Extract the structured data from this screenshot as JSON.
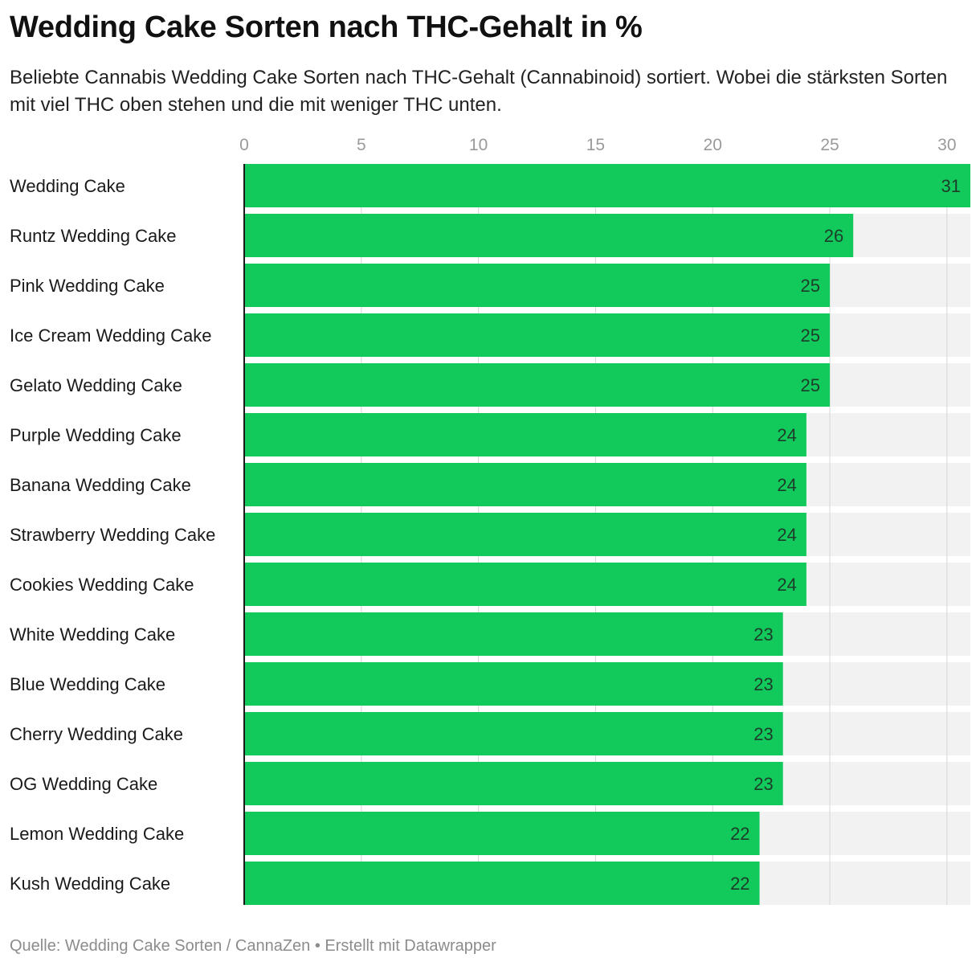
{
  "title": "Wedding Cake Sorten nach THC-Gehalt in %",
  "subtitle": "Beliebte Cannabis Wedding Cake Sorten nach THC-Gehalt (Cannabinoid) sortiert. Wobei die stärksten Sorten mit viel THC oben stehen und die mit weniger THC unten.",
  "footer": "Quelle: Wedding Cake Sorten / CannaZen • Erstellt mit Datawrapper",
  "colors": {
    "bar": "#12c95b",
    "track": "#f2f2f2",
    "gridline": "#d6d6d6",
    "axis": "#1a1a1a"
  },
  "chart_data": {
    "type": "bar",
    "orientation": "horizontal",
    "categories": [
      "Wedding Cake",
      "Runtz Wedding Cake",
      "Pink Wedding Cake",
      "Ice Cream Wedding Cake",
      "Gelato Wedding Cake",
      "Purple Wedding Cake",
      "Banana Wedding Cake",
      "Strawberry Wedding Cake",
      "Cookies Wedding Cake",
      "White Wedding Cake",
      "Blue Wedding Cake",
      "Cherry Wedding Cake",
      "OG Wedding Cake",
      "Lemon Wedding Cake",
      "Kush Wedding Cake"
    ],
    "values": [
      31,
      26,
      25,
      25,
      25,
      24,
      24,
      24,
      24,
      23,
      23,
      23,
      23,
      22,
      22
    ],
    "xlim": [
      0,
      31
    ],
    "xticks": [
      0,
      5,
      10,
      15,
      20,
      25,
      30
    ],
    "xaxis_position": "top",
    "grid": true,
    "legend": false,
    "data_labels": "inside-end"
  }
}
